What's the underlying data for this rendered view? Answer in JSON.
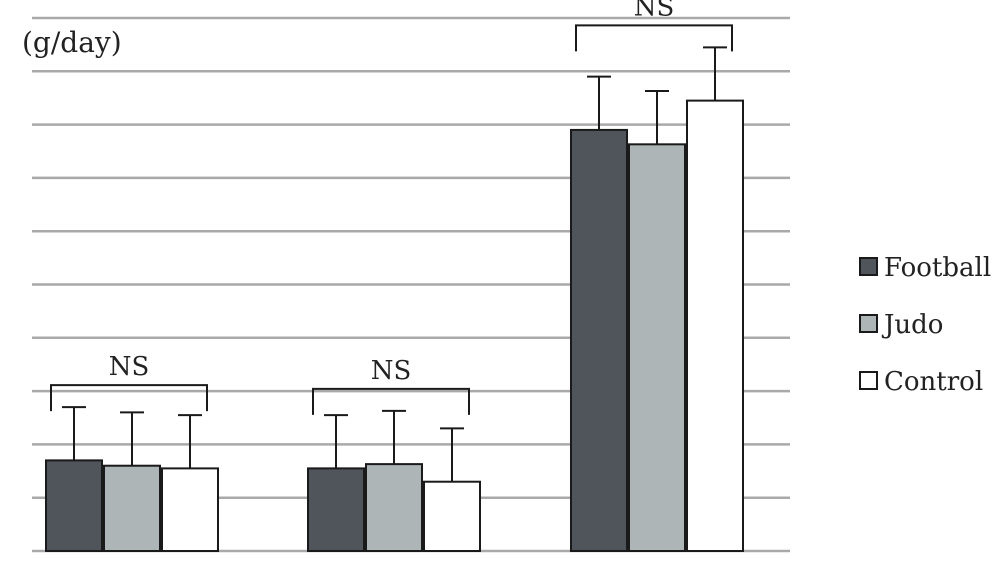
{
  "chart_data": {
    "type": "bar",
    "title": "",
    "xlabel": "",
    "ylabel": "(g/day)",
    "ylim": [
      0,
      10
    ],
    "grid": true,
    "legend_position": "right",
    "categories": [
      "",
      "",
      ""
    ],
    "series": [
      {
        "name": "Football",
        "color": "#4f555a",
        "values": [
          1.7,
          1.55,
          7.9
        ],
        "errors": [
          1.0,
          1.0,
          1.0
        ]
      },
      {
        "name": "Judo",
        "color": "#adb5b6",
        "values": [
          1.6,
          1.63,
          7.63
        ],
        "errors": [
          1.0,
          1.0,
          1.0
        ]
      },
      {
        "name": "Control",
        "color": "#ffffff",
        "values": [
          1.55,
          1.3,
          8.45
        ],
        "errors": [
          1.0,
          1.0,
          1.0
        ]
      }
    ],
    "annotations": [
      "NS",
      "NS",
      "NS"
    ]
  }
}
